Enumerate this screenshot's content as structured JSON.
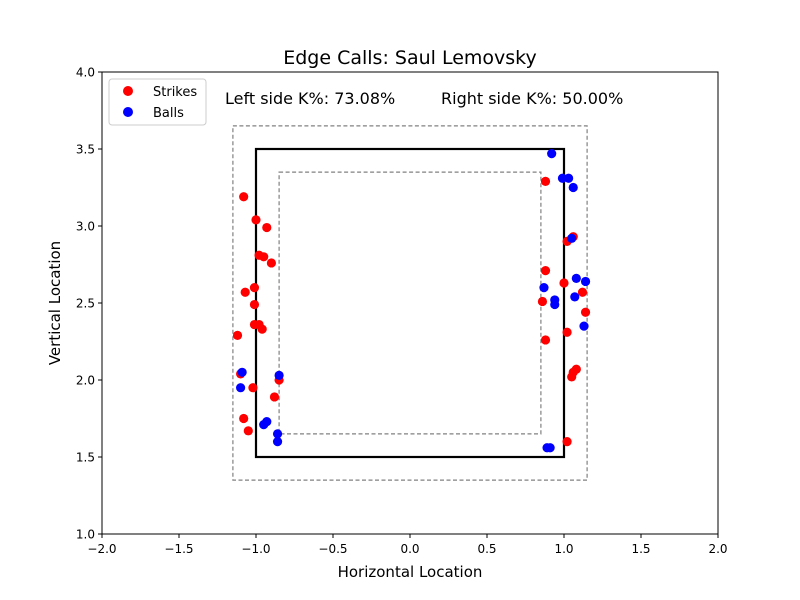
{
  "chart_data": {
    "type": "scatter",
    "title": "Edge Calls: Saul Lemovsky",
    "xlabel": "Horizontal Location",
    "ylabel": "Vertical Location",
    "xlim": [
      -2.0,
      2.0
    ],
    "ylim": [
      1.0,
      4.0
    ],
    "xticks": [
      "−2.0",
      "−1.5",
      "−1.0",
      "−0.5",
      "0.0",
      "0.5",
      "1.0",
      "1.5",
      "2.0"
    ],
    "xtick_values": [
      -2.0,
      -1.5,
      -1.0,
      -0.5,
      0.0,
      0.5,
      1.0,
      1.5,
      2.0
    ],
    "yticks": [
      "1.0",
      "1.5",
      "2.0",
      "2.5",
      "3.0",
      "3.5",
      "4.0"
    ],
    "ytick_values": [
      1.0,
      1.5,
      2.0,
      2.5,
      3.0,
      3.5,
      4.0
    ],
    "grid": false,
    "legend_position": "top-left",
    "annotations": {
      "left": "Left side K%: 73.08%",
      "right": "Right side K%: 50.00%"
    },
    "zones": {
      "strike_zone": {
        "x": [
          -1.0,
          1.0
        ],
        "y": [
          1.5,
          3.5
        ],
        "color": "#000000",
        "style": "solid"
      },
      "outer_edge": {
        "x": [
          -1.15,
          1.15
        ],
        "y": [
          1.35,
          3.65
        ],
        "color": "#808080",
        "style": "dashed"
      },
      "inner_edge": {
        "x": [
          -0.85,
          0.85
        ],
        "y": [
          1.65,
          3.35
        ],
        "color": "#808080",
        "style": "dashed"
      }
    },
    "series": [
      {
        "name": "Strikes",
        "color": "#ff0000",
        "points": [
          {
            "x": -1.08,
            "y": 3.19
          },
          {
            "x": -1.0,
            "y": 3.04
          },
          {
            "x": -0.93,
            "y": 2.99
          },
          {
            "x": -0.98,
            "y": 2.81
          },
          {
            "x": -0.95,
            "y": 2.8
          },
          {
            "x": -0.9,
            "y": 2.76
          },
          {
            "x": -1.07,
            "y": 2.57
          },
          {
            "x": -1.01,
            "y": 2.6
          },
          {
            "x": -1.01,
            "y": 2.49
          },
          {
            "x": -1.01,
            "y": 2.36
          },
          {
            "x": -0.98,
            "y": 2.36
          },
          {
            "x": -0.96,
            "y": 2.33
          },
          {
            "x": -1.12,
            "y": 2.29
          },
          {
            "x": -1.1,
            "y": 2.04
          },
          {
            "x": -1.02,
            "y": 1.95
          },
          {
            "x": -0.85,
            "y": 2.0
          },
          {
            "x": -0.88,
            "y": 1.89
          },
          {
            "x": -1.08,
            "y": 1.75
          },
          {
            "x": -1.05,
            "y": 1.67
          },
          {
            "x": 0.88,
            "y": 3.29
          },
          {
            "x": 1.06,
            "y": 2.93
          },
          {
            "x": 1.02,
            "y": 2.9
          },
          {
            "x": 0.88,
            "y": 2.71
          },
          {
            "x": 1.0,
            "y": 2.63
          },
          {
            "x": 1.12,
            "y": 2.57
          },
          {
            "x": 0.86,
            "y": 2.51
          },
          {
            "x": 1.14,
            "y": 2.44
          },
          {
            "x": 1.02,
            "y": 2.31
          },
          {
            "x": 0.88,
            "y": 2.26
          },
          {
            "x": 1.08,
            "y": 2.07
          },
          {
            "x": 1.06,
            "y": 2.05
          },
          {
            "x": 1.05,
            "y": 2.02
          },
          {
            "x": 1.02,
            "y": 1.6
          }
        ]
      },
      {
        "name": "Balls",
        "color": "#0000ff",
        "points": [
          {
            "x": 0.92,
            "y": 3.47
          },
          {
            "x": 0.99,
            "y": 3.31
          },
          {
            "x": 1.03,
            "y": 3.31
          },
          {
            "x": 1.06,
            "y": 3.25
          },
          {
            "x": 1.05,
            "y": 2.92
          },
          {
            "x": 1.08,
            "y": 2.66
          },
          {
            "x": 1.14,
            "y": 2.64
          },
          {
            "x": 0.87,
            "y": 2.6
          },
          {
            "x": 1.07,
            "y": 2.54
          },
          {
            "x": 0.94,
            "y": 2.52
          },
          {
            "x": 0.94,
            "y": 2.49
          },
          {
            "x": 1.13,
            "y": 2.35
          },
          {
            "x": -1.09,
            "y": 2.05
          },
          {
            "x": -0.85,
            "y": 2.03
          },
          {
            "x": -1.1,
            "y": 1.95
          },
          {
            "x": -0.93,
            "y": 1.73
          },
          {
            "x": -0.95,
            "y": 1.71
          },
          {
            "x": -0.86,
            "y": 1.65
          },
          {
            "x": -0.86,
            "y": 1.6
          },
          {
            "x": 0.89,
            "y": 1.56
          },
          {
            "x": 0.91,
            "y": 1.56
          }
        ]
      }
    ]
  }
}
